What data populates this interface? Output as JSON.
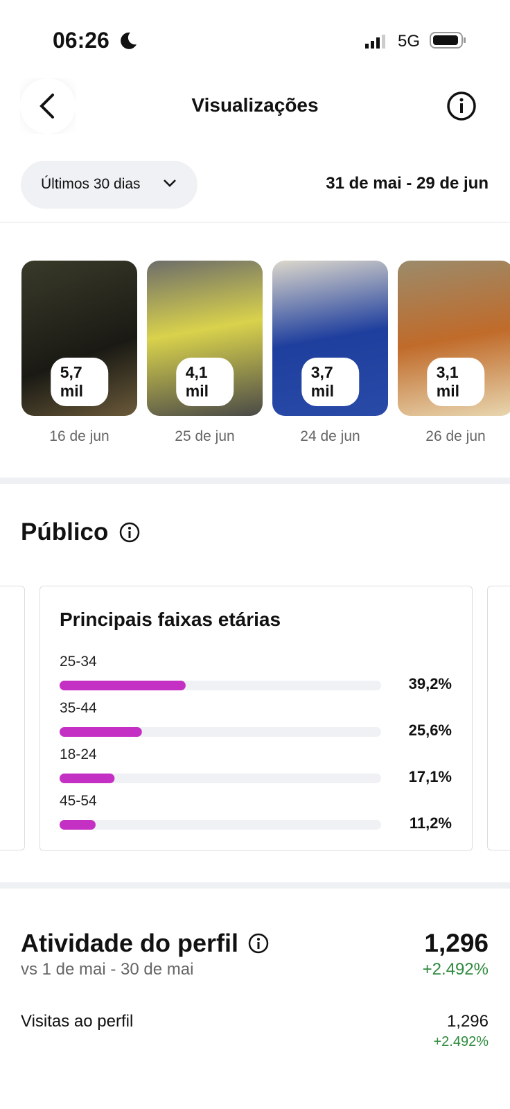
{
  "status_bar": {
    "time": "06:26",
    "network": "5G"
  },
  "header": {
    "title": "Visualizações"
  },
  "filter": {
    "period": "Últimos 30 dias",
    "date_range": "31 de mai - 29 de jun"
  },
  "posts": [
    {
      "views": "5,7 mil",
      "date": "16 de jun"
    },
    {
      "views": "4,1 mil",
      "date": "25 de jun"
    },
    {
      "views": "3,7 mil",
      "date": "24 de jun"
    },
    {
      "views": "3,1 mil",
      "date": "26 de jun"
    }
  ],
  "audience": {
    "title": "Público",
    "age_chart": {
      "type": "bar",
      "title": "Principais faixas etárias",
      "categories": [
        "25-34",
        "35-44",
        "18-24",
        "45-54"
      ],
      "values": [
        39.2,
        25.6,
        17.1,
        11.2
      ],
      "value_labels": [
        "39,2%",
        "25,6%",
        "17,1%",
        "11,2%"
      ],
      "color": "#c42fc4",
      "xlim": [
        0,
        100
      ]
    }
  },
  "activity": {
    "title": "Atividade do perfil",
    "subtitle": "vs 1 de mai - 30 de mai",
    "total": "1,296",
    "change": "+2.492%",
    "rows": [
      {
        "label": "Visitas ao perfil",
        "value": "1,296",
        "change": "+2.492%"
      }
    ]
  }
}
